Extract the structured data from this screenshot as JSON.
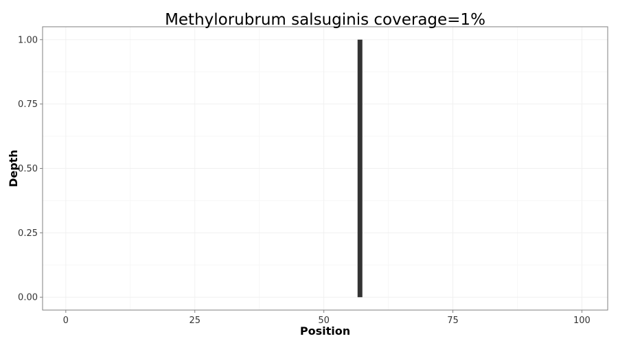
{
  "chart_data": {
    "type": "bar",
    "title": "Methylorubrum salsuginis coverage=1%",
    "xlabel": "Position",
    "ylabel": "Depth",
    "xlim": [
      -4.5,
      105
    ],
    "ylim": [
      -0.05,
      1.05
    ],
    "x_ticks": [
      0,
      25,
      50,
      75,
      100
    ],
    "x_tick_labels": [
      "0",
      "25",
      "50",
      "75",
      "100"
    ],
    "y_ticks": [
      0,
      0.25,
      0.5,
      0.75,
      1.0
    ],
    "y_tick_labels": [
      "0.00",
      "0.25",
      "0.50",
      "0.75",
      "1.00"
    ],
    "x_minor": [
      12.5,
      37.5,
      62.5,
      87.5
    ],
    "y_minor": [
      0.125,
      0.375,
      0.625,
      0.875
    ],
    "grid": true,
    "legend": "none",
    "series": [
      {
        "x": [
          57
        ],
        "values": [
          1.0
        ]
      }
    ],
    "bar_color": "#333333",
    "panel_border_color": "#7f7f7f",
    "grid_color": "#f0f0f0"
  }
}
